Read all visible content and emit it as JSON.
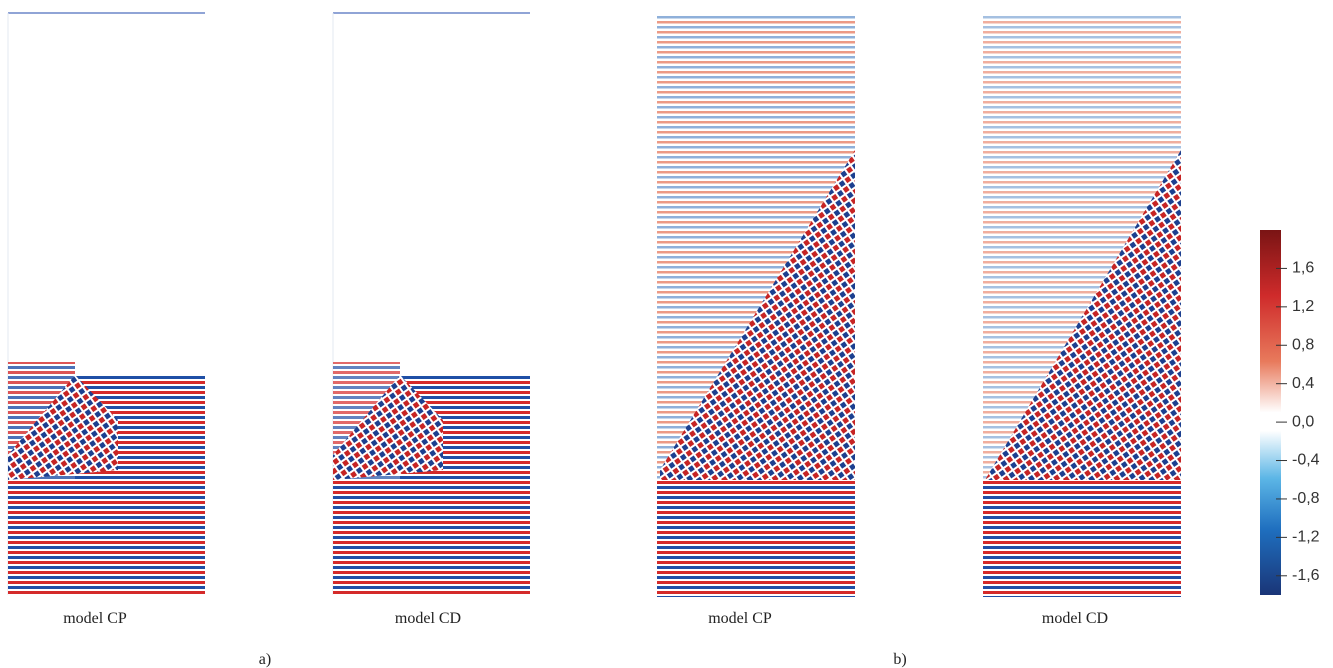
{
  "panels": [
    {
      "label": "model CP"
    },
    {
      "label": "model CD"
    },
    {
      "label": "model CP"
    },
    {
      "label": "model CD"
    }
  ],
  "groups": [
    "a)",
    "b)"
  ],
  "colorbar": {
    "range": [
      -1.8,
      2.0
    ],
    "ticks": [
      {
        "value": 1.6,
        "label": "1,6"
      },
      {
        "value": 1.2,
        "label": "1,2"
      },
      {
        "value": 0.8,
        "label": "0,8"
      },
      {
        "value": 0.4,
        "label": "0,4"
      },
      {
        "value": 0,
        "label": "0,0"
      },
      {
        "value": -0.4,
        "label": "-0,4"
      },
      {
        "value": -0.8,
        "label": "-0,8"
      },
      {
        "value": -1.2,
        "label": "-1,2"
      },
      {
        "value": -1.6,
        "label": "-1,6"
      }
    ]
  }
}
